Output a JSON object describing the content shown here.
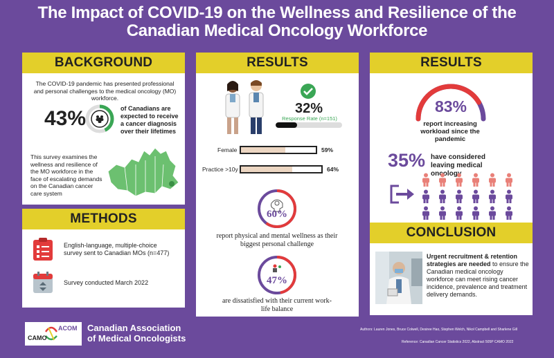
{
  "title_line1": "The Impact of COVID-19 on the Wellness and Resilience of the",
  "title_line2": "Canadian Medical Oncology Workforce",
  "background": {
    "heading": "BACKGROUND",
    "intro": "The COVID-19 pandemic has presented professional and personal challenges to the medical oncology (MO) workforce.",
    "stat_value": "43%",
    "stat_text": "of Canadians are expected to receive a cancer diagnosis over their lifetimes",
    "stat_fraction": 0.43,
    "survey_text": "This survey examines the wellness and resilience of the MO workforce in the face of escalating demands on the Canadian cancer care system"
  },
  "methods": {
    "heading": "METHODS",
    "item1": "English-language, multiple-choice survey sent to Canadian MOs (n=477)",
    "item2": "Survey conducted March 2022"
  },
  "results_mid": {
    "heading": "RESULTS",
    "response_value": "32%",
    "response_label": "Response Rate (n=151)",
    "response_fraction": 0.32,
    "bars": [
      {
        "label": "Female",
        "value_text": "59%",
        "value": 59
      },
      {
        "label": "Practice >10y",
        "value_text": "64%",
        "value": 64
      }
    ],
    "wellness_value": "60%",
    "wellness_fraction": 0.6,
    "wellness_text": "report physical and mental wellness as their biggest personal challenge",
    "balance_value": "47%",
    "balance_fraction": 0.47,
    "balance_text": "are dissatisfied with their current work-life balance"
  },
  "results_right": {
    "heading": "RESULTS",
    "workload_value": "83%",
    "workload_fraction": 0.83,
    "workload_text": "report increasing workload since the pandemic",
    "leave_value": "35%",
    "leave_text": "have considered leaving medical oncology",
    "people_total": 18,
    "people_highlighted": 6
  },
  "conclusion": {
    "heading": "CONCLUSION",
    "bold_text": "Urgent recruitment & retention strategies are needed",
    "rest_text": " to ensure the Canadian medical oncology workforce can meet rising cancer incidence, prevalence and treatment delivery demands."
  },
  "footer": {
    "org_line1": "Canadian Association",
    "org_line2": "of Medical Oncologists",
    "logo_left": "CAMO",
    "logo_right": "ACOM",
    "authors": "Authors: Lauren Jones, Bruce Colwell, Desiree Hao, Stephen Welch, Nikol Campbell and Sharlene Gill",
    "reference": "Reference: Canadian Cancer Statistics 2022, Abstract 505P CAMO 2022"
  },
  "colors": {
    "purple": "#6b4a9c",
    "yellow": "#e3cf2a",
    "red": "#e23b3b",
    "green": "#3aa655",
    "salmon": "#e98078"
  }
}
